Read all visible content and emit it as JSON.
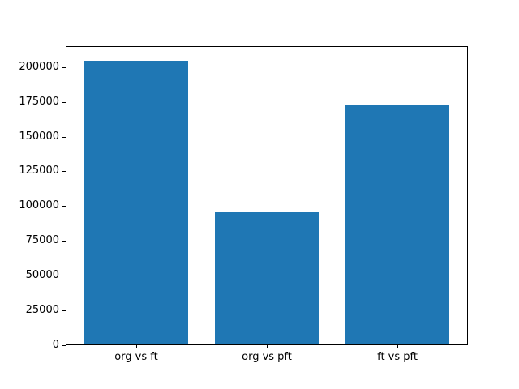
{
  "chart_data": {
    "type": "bar",
    "categories": [
      "org vs ft",
      "org vs pft",
      "ft vs pft"
    ],
    "values": [
      204500,
      95500,
      173000
    ],
    "title": "",
    "xlabel": "",
    "ylabel": "",
    "ylim": [
      0,
      215000
    ],
    "xlim": [
      -0.54,
      2.54
    ],
    "bar_width": 0.8,
    "yticks": [
      0,
      25000,
      50000,
      75000,
      100000,
      125000,
      150000,
      175000,
      200000
    ],
    "ytick_labels": [
      "0",
      "25000",
      "50000",
      "75000",
      "100000",
      "125000",
      "150000",
      "175000",
      "200000"
    ],
    "bar_color": "#1f77b4",
    "grid": false,
    "legend": null,
    "background_color": "#ffffff",
    "spine_color": "#000000"
  }
}
